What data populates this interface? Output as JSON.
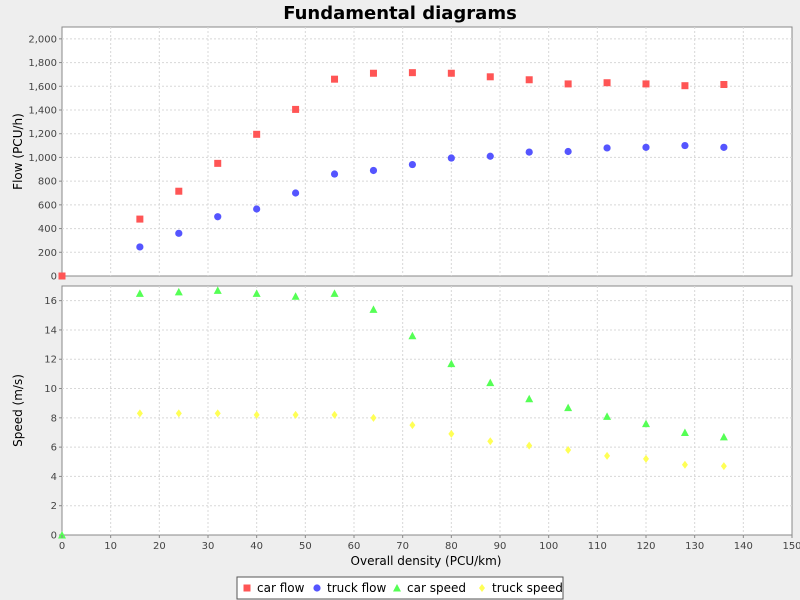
{
  "chart_data": {
    "type": "scatter",
    "title": "Fundamental diagrams",
    "xlabel": "Overall density (PCU/km)",
    "xlim": [
      0,
      150
    ],
    "xticks": [
      "0",
      "10",
      "20",
      "30",
      "40",
      "50",
      "60",
      "70",
      "80",
      "90",
      "100",
      "110",
      "120",
      "130",
      "140",
      "150"
    ],
    "grid": true,
    "legend": "bottom",
    "panels": [
      {
        "id": "flow",
        "ylabel": "Flow (PCU/h)",
        "ylim": [
          0,
          2100
        ],
        "yticks": [
          "0",
          "200",
          "400",
          "600",
          "800",
          "1,000",
          "1,200",
          "1,400",
          "1,600",
          "1,800",
          "2,000"
        ],
        "series": [
          {
            "name": "car flow",
            "color": "#ff5555",
            "marker": "square",
            "x": [
              0,
              16,
              24,
              32,
              40,
              48,
              56,
              64,
              72,
              80,
              88,
              96,
              104,
              112,
              120,
              128,
              136
            ],
            "y": [
              0,
              480,
              715,
              950,
              1195,
              1405,
              1660,
              1710,
              1715,
              1710,
              1680,
              1655,
              1620,
              1630,
              1620,
              1605,
              1615
            ]
          },
          {
            "name": "truck flow",
            "color": "#5555ff",
            "marker": "circle",
            "x": [
              16,
              24,
              32,
              40,
              48,
              56,
              64,
              72,
              80,
              88,
              96,
              104,
              112,
              120,
              128,
              136
            ],
            "y": [
              245,
              360,
              500,
              565,
              700,
              860,
              890,
              940,
              995,
              1010,
              1045,
              1050,
              1080,
              1085,
              1100,
              1085
            ]
          }
        ]
      },
      {
        "id": "speed",
        "ylabel": "Speed (m/s)",
        "ylim": [
          0,
          17
        ],
        "yticks": [
          "0",
          "2",
          "4",
          "6",
          "8",
          "10",
          "12",
          "14",
          "16"
        ],
        "series": [
          {
            "name": "car speed",
            "color": "#55ff55",
            "marker": "triangle",
            "x": [
              0,
              16,
              24,
              32,
              40,
              48,
              56,
              64,
              72,
              80,
              88,
              96,
              104,
              112,
              120,
              128,
              136
            ],
            "y": [
              0,
              16.5,
              16.6,
              16.7,
              16.5,
              16.3,
              16.5,
              15.4,
              13.6,
              11.7,
              10.4,
              9.3,
              8.7,
              8.1,
              7.6,
              7.0,
              6.7
            ]
          },
          {
            "name": "truck speed",
            "color": "#ffff55",
            "marker": "diamond",
            "x": [
              16,
              24,
              32,
              40,
              48,
              56,
              64,
              72,
              80,
              88,
              96,
              104,
              112,
              120,
              128,
              136
            ],
            "y": [
              8.3,
              8.3,
              8.3,
              8.2,
              8.2,
              8.2,
              8.0,
              7.5,
              6.9,
              6.4,
              6.1,
              5.8,
              5.4,
              5.2,
              4.8,
              4.7
            ]
          }
        ]
      }
    ],
    "legend_entries": [
      {
        "name": "car flow",
        "color": "#ff5555",
        "marker": "square"
      },
      {
        "name": "truck flow",
        "color": "#5555ff",
        "marker": "circle"
      },
      {
        "name": "car speed",
        "color": "#55ff55",
        "marker": "triangle"
      },
      {
        "name": "truck speed",
        "color": "#ffff55",
        "marker": "diamond"
      }
    ]
  }
}
